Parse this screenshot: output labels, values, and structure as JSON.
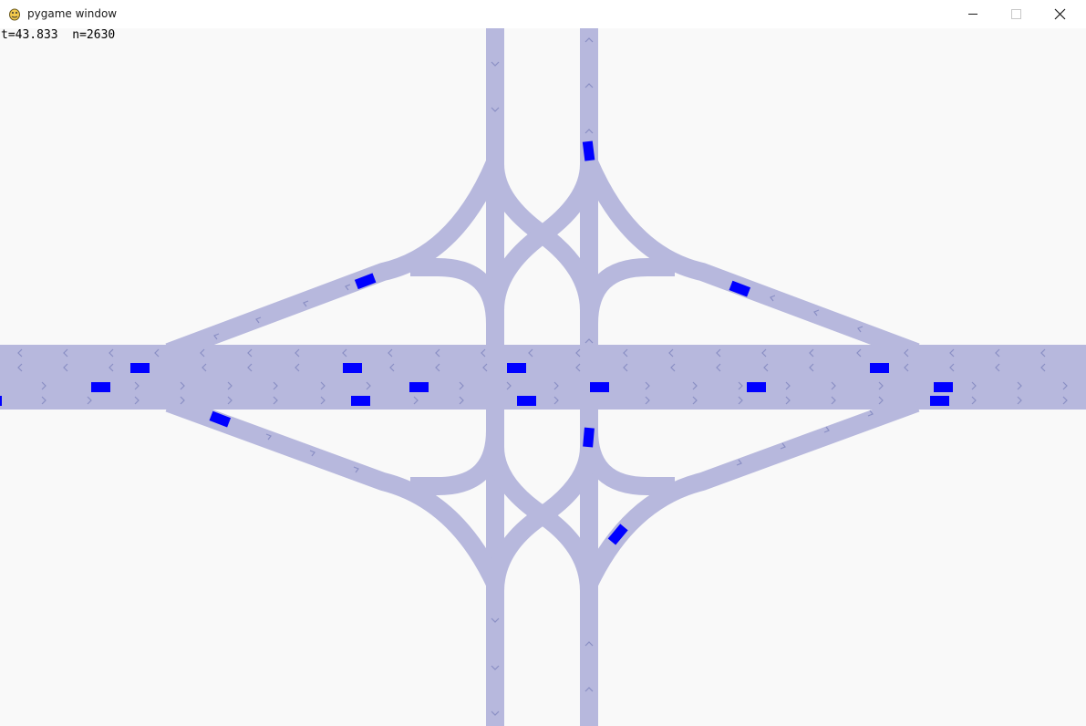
{
  "window": {
    "title": "pygame window",
    "minimize_icon": "minimize-icon",
    "maximize_icon": "maximize-icon",
    "close_icon": "close-icon"
  },
  "hud": {
    "time_label": "t=43.833",
    "count_label": "n=2630"
  },
  "colors": {
    "background": "#f9f9f9",
    "road": "#b7b8dd",
    "arrow": "#8a8fc4",
    "vehicle": "#0000ff"
  }
}
